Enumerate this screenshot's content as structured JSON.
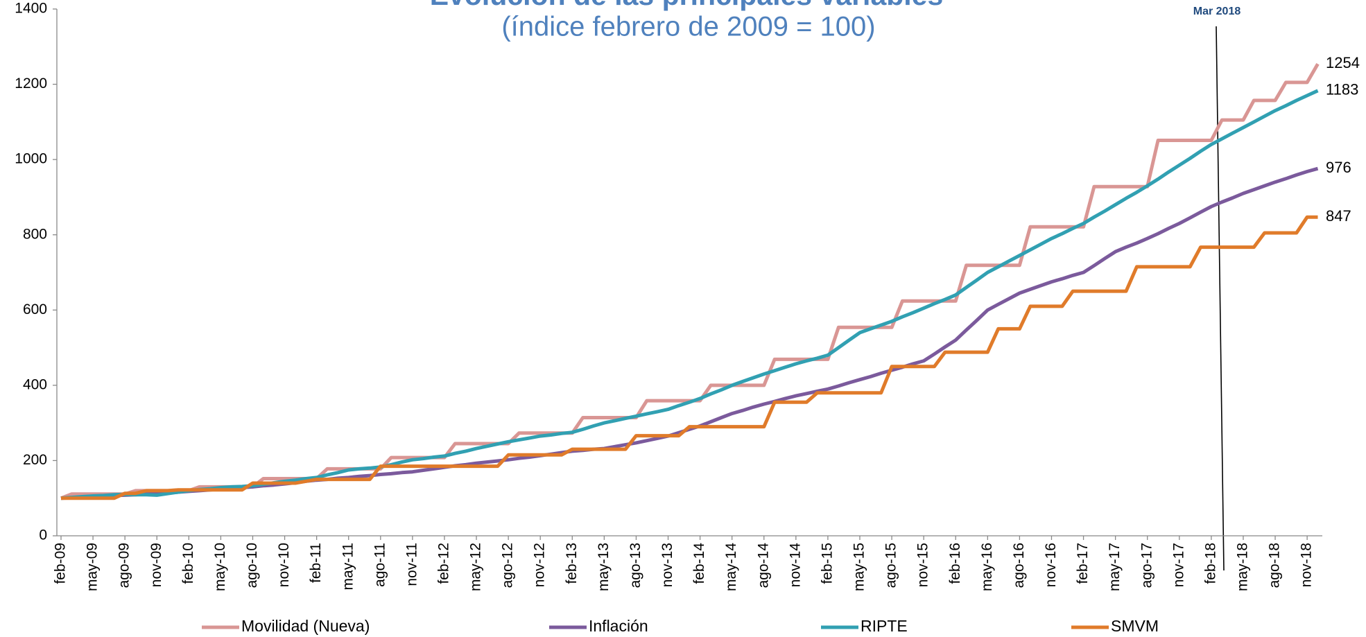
{
  "chart_data": {
    "type": "line",
    "title": "Evolución de las principales variables",
    "subtitle": "(índice febrero de 2009 = 100)",
    "annotation": "Mar 2018",
    "categories": [
      "feb-09",
      null,
      null,
      "may-09",
      null,
      null,
      "ago-09",
      null,
      null,
      "nov-09",
      null,
      null,
      "feb-10",
      null,
      null,
      "may-10",
      null,
      null,
      "ago-10",
      null,
      null,
      "nov-10",
      null,
      null,
      "feb-11",
      null,
      null,
      "may-11",
      null,
      null,
      "ago-11",
      null,
      null,
      "nov-11",
      null,
      null,
      "feb-12",
      null,
      null,
      "may-12",
      null,
      null,
      "ago-12",
      null,
      null,
      "nov-12",
      null,
      null,
      "feb-13",
      null,
      null,
      "may-13",
      null,
      null,
      "ago-13",
      null,
      null,
      "nov-13",
      null,
      null,
      "feb-14",
      null,
      null,
      "may-14",
      null,
      null,
      "ago-14",
      null,
      null,
      "nov-14",
      null,
      null,
      "feb-15",
      null,
      null,
      "may-15",
      null,
      null,
      "ago-15",
      null,
      null,
      "nov-15",
      null,
      null,
      "feb-16",
      null,
      null,
      "may-16",
      null,
      null,
      "ago-16",
      null,
      null,
      "nov-16",
      null,
      null,
      "feb-17",
      null,
      null,
      "may-17",
      null,
      null,
      "ago-17",
      null,
      null,
      "nov-17",
      null,
      null,
      "feb-18",
      null,
      null,
      "may-18",
      null,
      null,
      "ago-18",
      null,
      null,
      "nov-18",
      null
    ],
    "series": [
      {
        "name": "Movilidad (Nueva)",
        "color": "#d99694",
        "values": [
          100,
          111,
          111,
          111,
          111,
          111,
          111,
          120,
          120,
          120,
          120,
          120,
          120,
          130,
          130,
          130,
          130,
          130,
          130,
          152,
          152,
          152,
          152,
          152,
          152,
          178,
          178,
          178,
          178,
          178,
          178,
          208,
          208,
          208,
          208,
          208,
          208,
          245,
          245,
          245,
          245,
          245,
          245,
          273,
          273,
          273,
          273,
          273,
          273,
          314,
          314,
          314,
          314,
          314,
          314,
          359,
          359,
          359,
          359,
          359,
          359,
          400,
          400,
          400,
          400,
          400,
          400,
          469,
          469,
          469,
          469,
          469,
          469,
          554,
          554,
          554,
          554,
          554,
          554,
          624,
          624,
          624,
          624,
          624,
          624,
          719,
          719,
          719,
          719,
          719,
          719,
          821,
          821,
          821,
          821,
          821,
          821,
          928,
          928,
          928,
          928,
          928,
          928,
          1051,
          1051,
          1051,
          1051,
          1051,
          1051,
          1105,
          1105,
          1105,
          1157,
          1157,
          1157,
          1205,
          1205,
          1205,
          1254
        ]
      },
      {
        "name": "Inflación",
        "color": "#7b5a9c",
        "values": [
          100,
          101,
          103,
          104,
          105,
          107,
          108,
          109,
          111,
          112,
          114,
          116,
          118,
          120,
          122,
          124,
          126,
          128,
          130,
          133,
          135,
          138,
          141,
          145,
          148,
          150,
          153,
          155,
          158,
          160,
          163,
          165,
          168,
          170,
          174,
          178,
          182,
          186,
          189,
          193,
          196,
          199,
          202,
          206,
          209,
          213,
          217,
          221,
          225,
          227,
          230,
          232,
          237,
          242,
          247,
          253,
          259,
          265,
          274,
          283,
          292,
          303,
          314,
          325,
          333,
          342,
          350,
          357,
          365,
          372,
          378,
          384,
          390,
          398,
          407,
          415,
          423,
          432,
          440,
          448,
          457,
          465,
          483,
          502,
          520,
          547,
          573,
          600,
          615,
          630,
          645,
          655,
          665,
          675,
          683,
          692,
          700,
          718,
          737,
          755,
          767,
          778,
          790,
          803,
          817,
          830,
          845,
          860,
          875,
          887,
          898,
          910,
          920,
          930,
          940,
          949,
          959,
          968,
          976
        ]
      },
      {
        "name": "RIPTE",
        "color": "#31a0b2",
        "values": [
          100,
          102,
          104,
          106,
          107,
          109,
          110,
          109,
          109,
          108,
          112,
          116,
          120,
          123,
          125,
          128,
          130,
          131,
          133,
          137,
          141,
          145,
          148,
          152,
          155,
          162,
          168,
          175,
          178,
          180,
          183,
          189,
          196,
          202,
          205,
          209,
          212,
          219,
          225,
          232,
          238,
          244,
          250,
          255,
          260,
          265,
          268,
          272,
          275,
          283,
          292,
          300,
          306,
          312,
          318,
          324,
          330,
          336,
          346,
          355,
          365,
          377,
          388,
          400,
          410,
          420,
          430,
          439,
          448,
          457,
          465,
          472,
          480,
          500,
          520,
          540,
          550,
          560,
          570,
          582,
          593,
          605,
          617,
          628,
          640,
          660,
          680,
          700,
          715,
          730,
          745,
          760,
          775,
          790,
          803,
          817,
          830,
          847,
          863,
          880,
          897,
          913,
          930,
          948,
          967,
          985,
          1003,
          1022,
          1040,
          1055,
          1070,
          1085,
          1100,
          1115,
          1130,
          1143,
          1157,
          1170,
          1183
        ]
      },
      {
        "name": "SMVM",
        "color": "#e07b2a",
        "values": [
          100,
          100,
          100,
          100,
          100,
          100,
          113,
          113,
          120,
          120,
          120,
          122,
          122,
          122,
          122,
          122,
          122,
          122,
          140,
          140,
          140,
          140,
          140,
          145,
          150,
          150,
          150,
          150,
          150,
          150,
          185,
          185,
          185,
          185,
          185,
          185,
          185,
          185,
          185,
          185,
          185,
          185,
          215,
          215,
          215,
          215,
          215,
          215,
          230,
          230,
          230,
          230,
          230,
          230,
          266,
          266,
          266,
          266,
          266,
          290,
          290,
          290,
          290,
          290,
          290,
          290,
          290,
          355,
          355,
          355,
          355,
          380,
          380,
          380,
          380,
          380,
          380,
          380,
          450,
          450,
          450,
          450,
          450,
          488,
          488,
          488,
          488,
          488,
          550,
          550,
          550,
          610,
          610,
          610,
          610,
          650,
          650,
          650,
          650,
          650,
          650,
          715,
          715,
          715,
          715,
          715,
          715,
          767,
          767,
          767,
          767,
          767,
          767,
          805,
          805,
          805,
          805,
          847,
          847
        ]
      }
    ],
    "ylim": [
      0,
      1400
    ],
    "yticks": [
      0,
      200,
      400,
      600,
      800,
      1000,
      1200,
      1400
    ],
    "grid": false,
    "legend": "bottom"
  }
}
